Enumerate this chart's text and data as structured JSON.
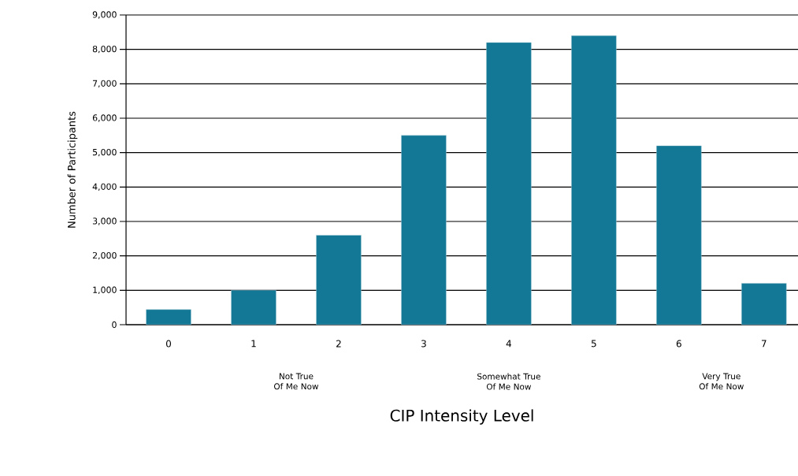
{
  "chart_data": {
    "type": "bar",
    "xlabel": "CIP Intensity Level",
    "ylabel": "Number of Participants",
    "categories": [
      "0",
      "1",
      "2",
      "3",
      "4",
      "5",
      "6",
      "7"
    ],
    "values": [
      440,
      1000,
      2600,
      5500,
      8200,
      8400,
      5200,
      1200
    ],
    "color": "#137896",
    "ylim": [
      0,
      9000
    ],
    "yticks": [
      0,
      {
        "value": 1000,
        "label": "1,000"
      },
      {
        "value": 2000,
        "label": "2,000"
      },
      {
        "value": 3000,
        "label": "3,000"
      },
      {
        "value": 4000,
        "label": "4,000"
      },
      {
        "value": 5000,
        "label": "5,000"
      },
      {
        "value": 6000,
        "label": "6,000"
      },
      {
        "value": 7000,
        "label": "7,000"
      },
      {
        "value": 8000,
        "label": "8,000"
      },
      {
        "value": 9000,
        "label": "9,000"
      }
    ],
    "grid": "y",
    "annotations": [
      "Not True Of Me Now",
      "Somewhat True Of Me Now",
      "Very True Of Me Now"
    ]
  }
}
